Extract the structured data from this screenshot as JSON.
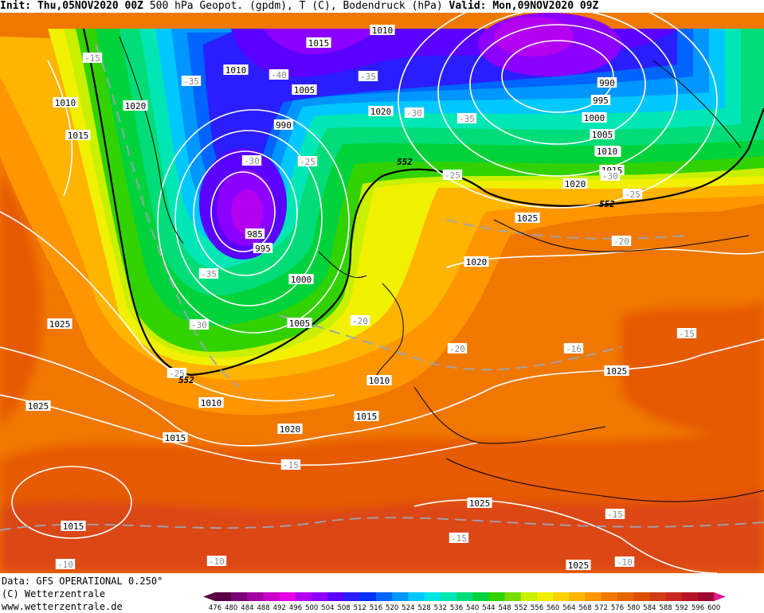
{
  "header": {
    "init": "Init: Thu,05NOV2020 00Z",
    "product": "500 hPa Geopot. (gpdm), T (C), Bodendruck (hPa)",
    "valid": "Valid: Mon,09NOV2020 09Z"
  },
  "footer": {
    "data_line": "Data: GFS OPERATIONAL 0.250°",
    "copyright_line": "(C) Wetterzentrale",
    "url_line": "www.wetterzentrale.de"
  },
  "legend": {
    "values": [
      "476",
      "480",
      "484",
      "488",
      "492",
      "496",
      "500",
      "504",
      "508",
      "512",
      "516",
      "520",
      "524",
      "528",
      "532",
      "536",
      "540",
      "544",
      "548",
      "552",
      "556",
      "560",
      "564",
      "568",
      "572",
      "576",
      "580",
      "584",
      "588",
      "592",
      "596",
      "600"
    ],
    "colors": [
      "#5a0046",
      "#7a0078",
      "#a000a0",
      "#c800c8",
      "#e600e6",
      "#b400f0",
      "#8c00ff",
      "#5a00ff",
      "#2a1eff",
      "#0032ff",
      "#0064ff",
      "#0096ff",
      "#00c8ff",
      "#00e6e6",
      "#00e6b4",
      "#00dc78",
      "#00d23c",
      "#32d200",
      "#78dc00",
      "#c8f000",
      "#f0f000",
      "#ffd200",
      "#ffb400",
      "#ff9600",
      "#f07800",
      "#e66400",
      "#dc5000",
      "#d23c14",
      "#c8281e",
      "#b41428",
      "#a00a32",
      "#dc1e8c"
    ]
  },
  "map_labels": {
    "pressure": [
      {
        "text": "1010"
      },
      {
        "text": "1015"
      },
      {
        "text": "1010"
      },
      {
        "text": "1005"
      },
      {
        "text": "990"
      },
      {
        "text": "1020"
      },
      {
        "text": "1010"
      },
      {
        "text": "1015"
      },
      {
        "text": "1010"
      },
      {
        "text": "1020"
      },
      {
        "text": "990"
      },
      {
        "text": "995"
      },
      {
        "text": "1000"
      },
      {
        "text": "1005"
      },
      {
        "text": "1010"
      },
      {
        "text": "1015"
      },
      {
        "text": "1020"
      },
      {
        "text": "1025"
      },
      {
        "text": "1025"
      },
      {
        "text": "985"
      },
      {
        "text": "995"
      },
      {
        "text": "1000"
      },
      {
        "text": "1005"
      },
      {
        "text": "1025"
      },
      {
        "text": "1020"
      },
      {
        "text": "1010"
      },
      {
        "text": "1015"
      },
      {
        "text": "1020"
      },
      {
        "text": "1010"
      },
      {
        "text": "1015"
      },
      {
        "text": "1025"
      },
      {
        "text": "1025"
      },
      {
        "text": "1015"
      },
      {
        "text": "1025"
      }
    ],
    "temperature": [
      {
        "text": "-15"
      },
      {
        "text": "-35"
      },
      {
        "text": "-40"
      },
      {
        "text": "-35"
      },
      {
        "text": "-30"
      },
      {
        "text": "-35"
      },
      {
        "text": "-30"
      },
      {
        "text": "-30"
      },
      {
        "text": "-25"
      },
      {
        "text": "-25"
      },
      {
        "text": "-25"
      },
      {
        "text": "-35"
      },
      {
        "text": "-30"
      },
      {
        "text": "-20"
      },
      {
        "text": "-20"
      },
      {
        "text": "-25"
      },
      {
        "text": "-20"
      },
      {
        "text": "-16"
      },
      {
        "text": "-15"
      },
      {
        "text": "-15"
      },
      {
        "text": "-15"
      },
      {
        "text": "-15"
      },
      {
        "text": "-10"
      },
      {
        "text": "-10"
      },
      {
        "text": "-10"
      }
    ],
    "geopotential": [
      {
        "text": "552"
      },
      {
        "text": "552"
      },
      {
        "text": "552"
      }
    ]
  }
}
